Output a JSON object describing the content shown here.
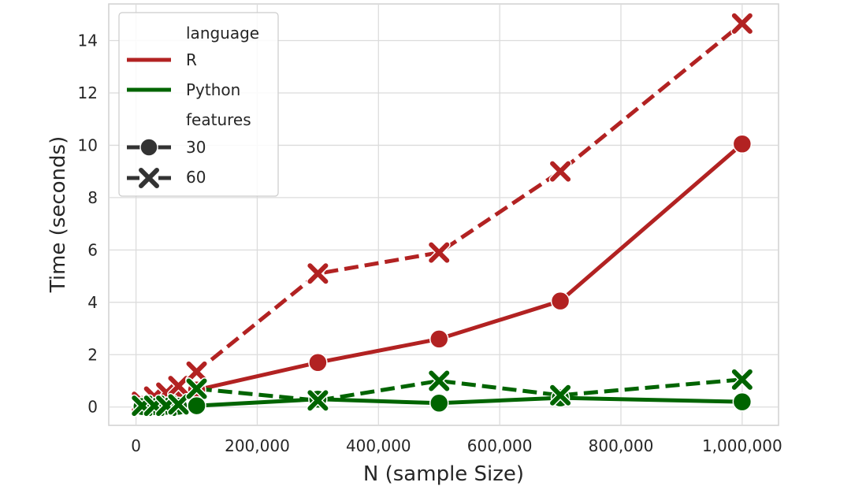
{
  "chart_data": {
    "type": "line",
    "title": "",
    "xlabel": "N (sample Size)",
    "ylabel": "Time (seconds)",
    "xlim": [
      -45000,
      1060000
    ],
    "ylim": [
      -0.7,
      15.4
    ],
    "xticks": [
      0,
      200000,
      400000,
      600000,
      800000,
      1000000
    ],
    "xtick_labels": [
      "0",
      "200,000",
      "400,000",
      "600,000",
      "800,000",
      "1,000,000"
    ],
    "yticks": [
      0,
      2,
      4,
      6,
      8,
      10,
      12,
      14
    ],
    "ytick_labels": [
      "0",
      "2",
      "4",
      "6",
      "8",
      "10",
      "12",
      "14"
    ],
    "grid": true,
    "legend": {
      "placement": "top-left",
      "hue_title": "language",
      "style_title": "features",
      "hue_entries": [
        {
          "label": "R",
          "color": "#b22222"
        },
        {
          "label": "Python",
          "color": "#006400"
        }
      ],
      "style_entries": [
        {
          "label": "30",
          "marker": "circle",
          "dash": "solid"
        },
        {
          "label": "60",
          "marker": "x",
          "dash": "dashed"
        }
      ]
    },
    "x": [
      10000,
      30000,
      50000,
      70000,
      100000,
      300000,
      500000,
      700000,
      1000000
    ],
    "series": [
      {
        "language": "R",
        "features": "30",
        "color": "#b22222",
        "marker": "circle",
        "dash": "solid",
        "values": [
          0.1,
          0.2,
          0.3,
          0.45,
          0.65,
          1.7,
          2.6,
          4.05,
          10.05
        ]
      },
      {
        "language": "R",
        "features": "60",
        "color": "#b22222",
        "marker": "x",
        "dash": "dashed",
        "values": [
          0.2,
          0.4,
          0.55,
          0.8,
          1.35,
          5.1,
          5.9,
          9.0,
          14.65
        ]
      },
      {
        "language": "Python",
        "features": "30",
        "color": "#006400",
        "marker": "circle",
        "dash": "solid",
        "values": [
          0.02,
          0.02,
          0.03,
          0.03,
          0.05,
          0.3,
          0.15,
          0.35,
          0.2
        ]
      },
      {
        "language": "Python",
        "features": "60",
        "color": "#006400",
        "marker": "x",
        "dash": "dashed",
        "values": [
          0.05,
          0.05,
          0.05,
          0.1,
          0.7,
          0.25,
          1.0,
          0.45,
          1.05
        ]
      }
    ]
  }
}
